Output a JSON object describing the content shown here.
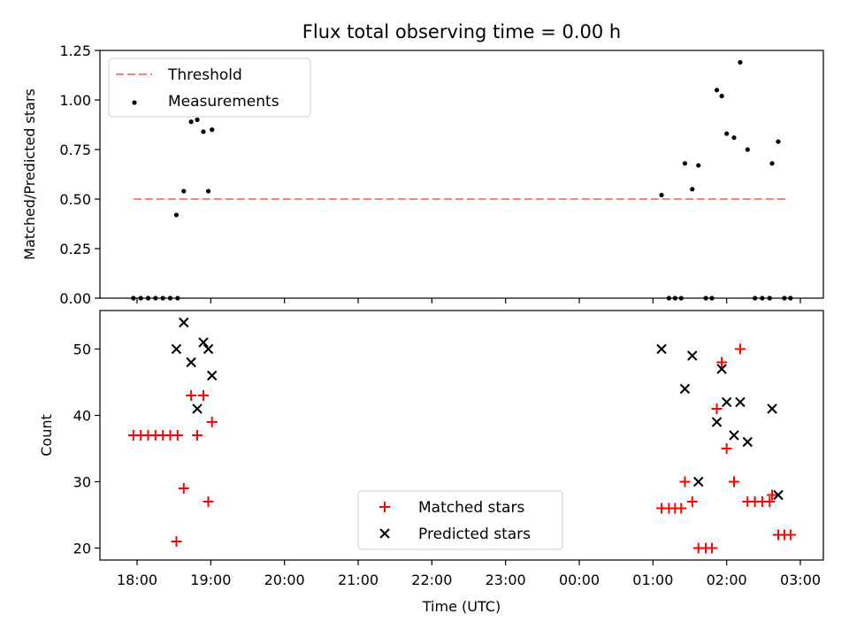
{
  "chart_data": [
    {
      "type": "scatter",
      "title": "Flux total observing time = 0.00 h",
      "ylabel": "Matched/Predicted stars",
      "xlabel": "",
      "ylim": [
        0,
        1.25
      ],
      "yticks": [
        "0.00",
        "0.25",
        "0.50",
        "0.75",
        "1.00",
        "1.25"
      ],
      "legend_placement": "top-left",
      "threshold": {
        "name": "Threshold",
        "value": 0.5,
        "x_start": "17:57",
        "x_end": "02:50",
        "color": "#ff7f7f"
      },
      "series": [
        {
          "name": "Measurements",
          "color": "#000000",
          "points": [
            [
              "17:57",
              0
            ],
            [
              "18:03",
              0
            ],
            [
              "18:09",
              0
            ],
            [
              "18:15",
              0
            ],
            [
              "18:21",
              0
            ],
            [
              "18:27",
              0
            ],
            [
              "18:33",
              0
            ],
            [
              "18:32",
              0.42
            ],
            [
              "18:38",
              0.54
            ],
            [
              "18:44",
              0.89
            ],
            [
              "18:49",
              0.9
            ],
            [
              "18:54",
              0.84
            ],
            [
              "18:58",
              0.54
            ],
            [
              "19:01",
              0.85
            ],
            [
              "01:07",
              0.52
            ],
            [
              "01:13",
              0
            ],
            [
              "01:18",
              0
            ],
            [
              "01:23",
              0
            ],
            [
              "01:26",
              0.68
            ],
            [
              "01:32",
              0.55
            ],
            [
              "01:37",
              0.67
            ],
            [
              "01:43",
              0
            ],
            [
              "01:48",
              0
            ],
            [
              "01:52",
              1.05
            ],
            [
              "01:56",
              1.02
            ],
            [
              "02:00",
              0.83
            ],
            [
              "02:06",
              0.81
            ],
            [
              "02:11",
              1.19
            ],
            [
              "02:17",
              0.75
            ],
            [
              "02:23",
              0
            ],
            [
              "02:29",
              0
            ],
            [
              "02:35",
              0
            ],
            [
              "02:37",
              0.68
            ],
            [
              "02:42",
              0.79
            ],
            [
              "02:47",
              0
            ],
            [
              "02:52",
              0
            ]
          ]
        }
      ]
    },
    {
      "type": "scatter",
      "title": "",
      "ylabel": "Count",
      "xlabel": "Time (UTC)",
      "ylim": [
        18.2,
        55.8
      ],
      "yticks": [
        "20",
        "30",
        "40",
        "50"
      ],
      "xticks": [
        "18:00",
        "19:00",
        "20:00",
        "21:00",
        "22:00",
        "23:00",
        "00:00",
        "01:00",
        "02:00",
        "03:00"
      ],
      "legend_placement": "lower-center",
      "series": [
        {
          "name": "Matched stars",
          "marker": "plus",
          "color": "#ff0000",
          "points": [
            [
              "17:57",
              37
            ],
            [
              "18:03",
              37
            ],
            [
              "18:09",
              37
            ],
            [
              "18:15",
              37
            ],
            [
              "18:21",
              37
            ],
            [
              "18:27",
              37
            ],
            [
              "18:33",
              37
            ],
            [
              "18:32",
              21
            ],
            [
              "18:38",
              29
            ],
            [
              "18:44",
              43
            ],
            [
              "18:49",
              37
            ],
            [
              "18:54",
              43
            ],
            [
              "18:58",
              27
            ],
            [
              "19:01",
              39
            ],
            [
              "01:07",
              26
            ],
            [
              "01:13",
              26
            ],
            [
              "01:18",
              26
            ],
            [
              "01:23",
              26
            ],
            [
              "01:26",
              30
            ],
            [
              "01:32",
              27
            ],
            [
              "01:37",
              20
            ],
            [
              "01:43",
              20
            ],
            [
              "01:48",
              20
            ],
            [
              "01:52",
              41
            ],
            [
              "01:56",
              48
            ],
            [
              "02:00",
              35
            ],
            [
              "02:06",
              30
            ],
            [
              "02:11",
              50
            ],
            [
              "02:17",
              27
            ],
            [
              "02:23",
              27
            ],
            [
              "02:29",
              27
            ],
            [
              "02:35",
              27
            ],
            [
              "02:37",
              28
            ],
            [
              "02:42",
              22
            ],
            [
              "02:47",
              22
            ],
            [
              "02:52",
              22
            ]
          ]
        },
        {
          "name": "Predicted stars",
          "marker": "x",
          "color": "#000000",
          "points": [
            [
              "18:32",
              50
            ],
            [
              "18:38",
              54
            ],
            [
              "18:44",
              48
            ],
            [
              "18:49",
              41
            ],
            [
              "18:54",
              51
            ],
            [
              "18:58",
              50
            ],
            [
              "19:01",
              46
            ],
            [
              "01:07",
              50
            ],
            [
              "01:26",
              44
            ],
            [
              "01:32",
              49
            ],
            [
              "01:37",
              30
            ],
            [
              "01:52",
              39
            ],
            [
              "01:56",
              47
            ],
            [
              "02:00",
              42
            ],
            [
              "02:06",
              37
            ],
            [
              "02:11",
              42
            ],
            [
              "02:17",
              36
            ],
            [
              "02:37",
              41
            ],
            [
              "02:42",
              28
            ]
          ]
        }
      ]
    }
  ]
}
